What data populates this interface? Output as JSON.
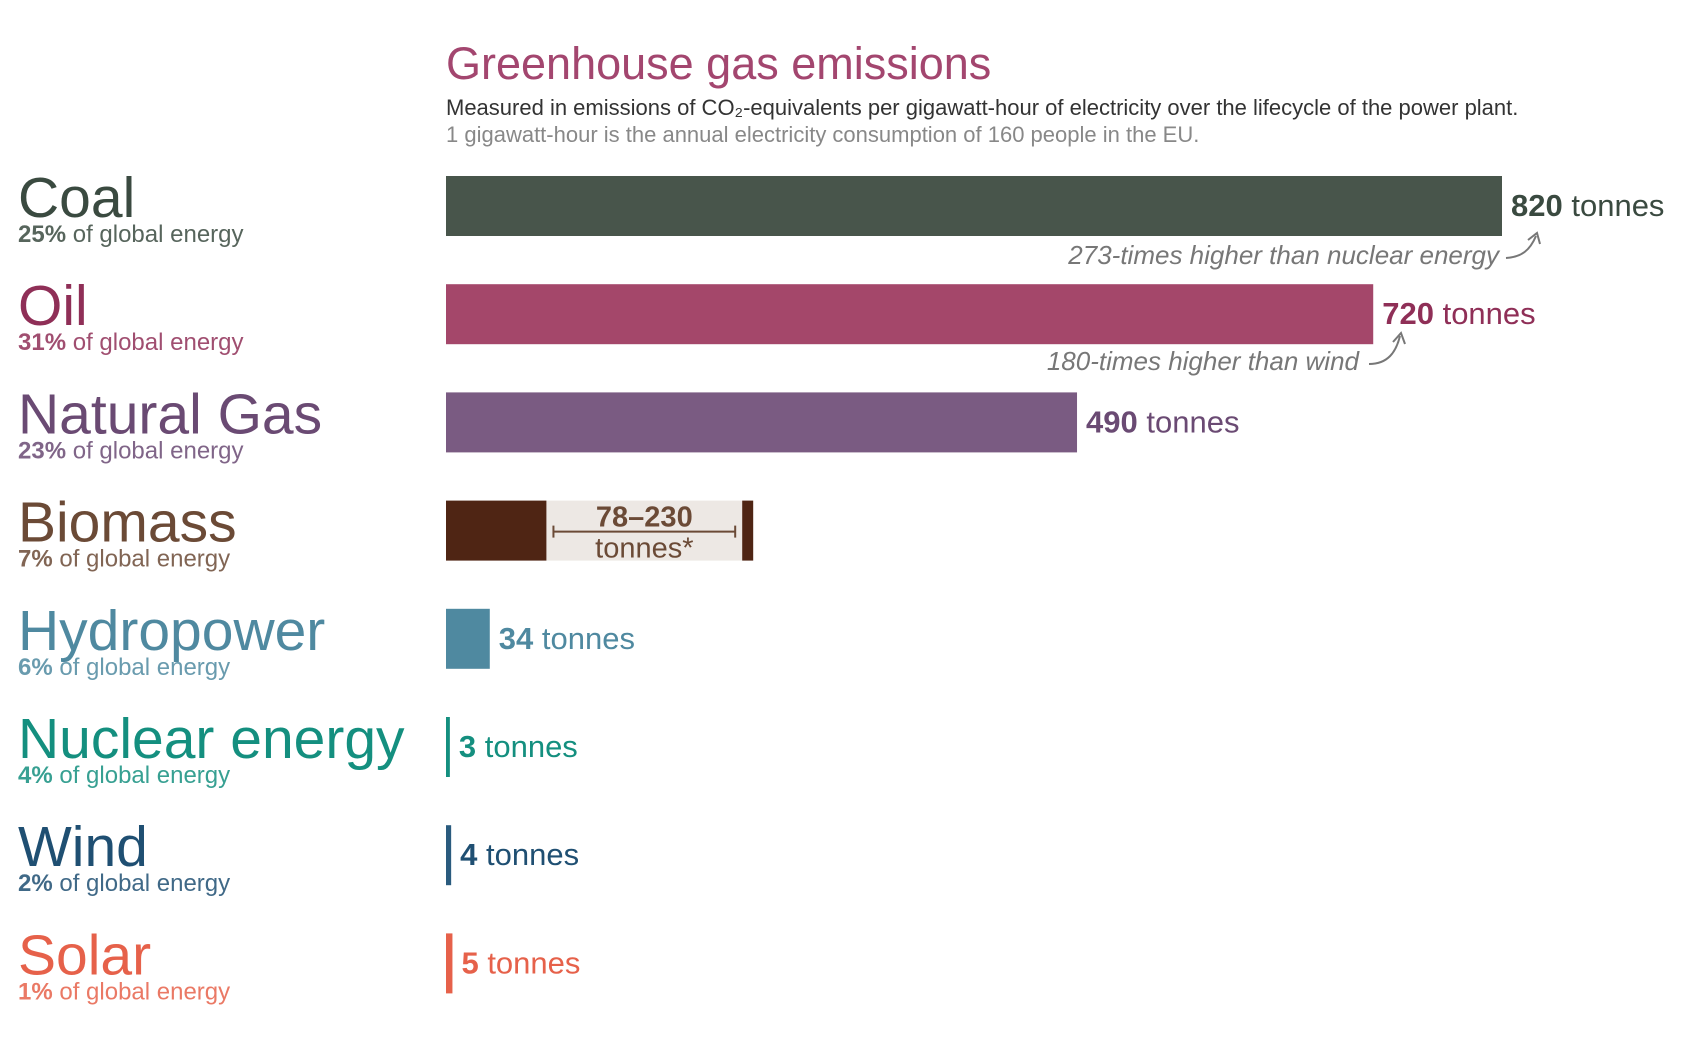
{
  "chart_data": {
    "type": "bar",
    "title": "Greenhouse gas emissions",
    "subtitle": "Measured in emissions of CO₂-equivalents per gigawatt-hour of electricity over the lifecycle of the power plant.",
    "note": "1 gigawatt-hour is the annual electricity consumption of 160 people in the EU.",
    "categories": [
      "Coal",
      "Oil",
      "Natural Gas",
      "Biomass",
      "Hydropower",
      "Nuclear energy",
      "Wind",
      "Solar"
    ],
    "share_labels": [
      "25%",
      "31%",
      "23%",
      "7%",
      "6%",
      "4%",
      "2%",
      "1%"
    ],
    "share_suffix": "of global energy",
    "values": [
      820,
      720,
      490,
      78,
      34,
      3,
      4,
      5
    ],
    "value_highs": [
      null,
      null,
      null,
      230,
      null,
      null,
      null,
      null
    ],
    "value_labels": [
      "820",
      "720",
      "490",
      "78–230",
      "34",
      "3",
      "4",
      "5"
    ],
    "unit_labels": [
      "tonnes",
      "tonnes",
      "tonnes",
      "tonnes*",
      "tonnes",
      "tonnes",
      "tonnes",
      "tonnes"
    ],
    "colors": [
      "#48554b",
      "#a4476a",
      "#7a5b82",
      "#4f2514",
      "#4f89a0",
      "#148f7f",
      "#2a5b7e",
      "#e6614a"
    ],
    "label_colors": [
      "#3a4a40",
      "#8f2f57",
      "#6a4a73",
      "#6b4a36",
      "#4f89a0",
      "#148f7f",
      "#1f4f72",
      "#e6614a"
    ],
    "range_color": "#ede8e4",
    "xlim": [
      0,
      820
    ],
    "annotations": [
      "273-times higher than nuclear energy",
      "180-times higher than wind"
    ]
  }
}
